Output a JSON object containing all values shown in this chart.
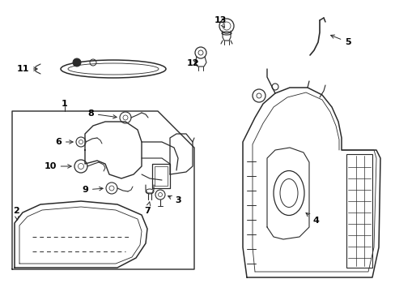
{
  "bg_color": "#ffffff",
  "line_color": "#2a2a2a",
  "fig_width": 4.89,
  "fig_height": 3.6,
  "dpi": 100,
  "lw_main": 1.0,
  "lw_thin": 0.6,
  "lw_thick": 1.2
}
